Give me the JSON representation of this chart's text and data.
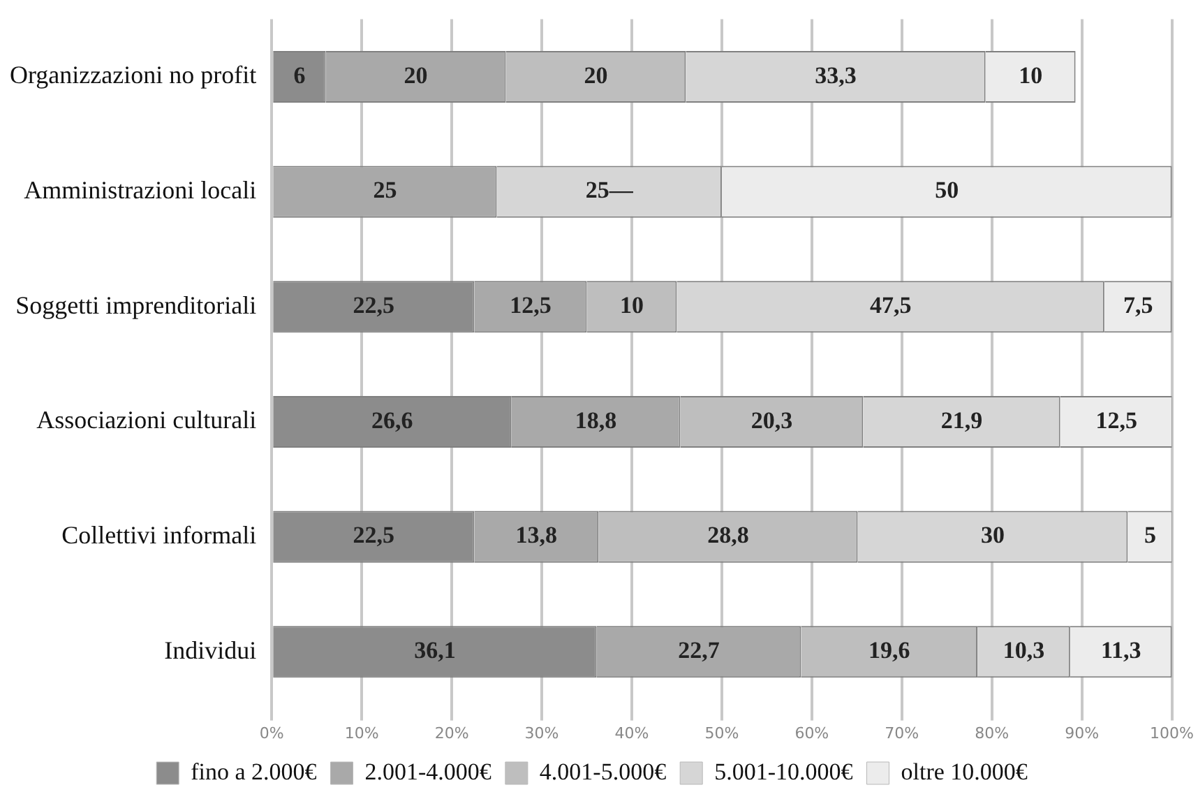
{
  "chart_data": {
    "type": "bar",
    "orientation": "horizontal",
    "stacked": true,
    "legend": "bottom",
    "grid": "x",
    "categories": [
      "Organizzazioni no profit",
      "Amministrazioni locali",
      "Soggetti imprenditoriali",
      "Associazioni culturali",
      "Collettivi informali",
      "Individui"
    ],
    "series": [
      {
        "name": "fino a 2.000€",
        "color": "#8c8c8c",
        "values": [
          6,
          null,
          22.5,
          26.6,
          22.5,
          36.1
        ],
        "value_labels": [
          "6",
          null,
          "22,5",
          "26,6",
          "22,5",
          "36,1"
        ]
      },
      {
        "name": "2.001-4.000€",
        "color": "#a9a9a9",
        "values": [
          20,
          25,
          12.5,
          18.8,
          13.8,
          22.7
        ],
        "value_labels": [
          "20",
          "25",
          "12,5",
          "18,8",
          "13,8",
          "22,7"
        ]
      },
      {
        "name": "4.001-5.000€",
        "color": "#bebebe",
        "values": [
          20,
          null,
          10,
          20.3,
          28.8,
          19.6
        ],
        "value_labels": [
          "20",
          null,
          "10",
          "20,3",
          "28,8",
          "19,6"
        ]
      },
      {
        "name": "5.001-10.000€",
        "color": "#d6d6d6",
        "values": [
          33.3,
          25,
          47.5,
          21.9,
          30,
          10.3
        ],
        "value_labels": [
          "33,3",
          "25—",
          "47,5",
          "21,9",
          "30",
          "10,3"
        ]
      },
      {
        "name": "oltre 10.000€",
        "color": "#ececec",
        "values": [
          10,
          50,
          7.5,
          12.5,
          5,
          11.3
        ],
        "value_labels": [
          "10",
          "50",
          "7,5",
          "12,5",
          "5",
          "11,3"
        ]
      }
    ],
    "xlim": [
      0,
      100
    ],
    "xticks": [
      {
        "value": 0,
        "label": "0%"
      },
      {
        "value": 10,
        "label": "10%"
      },
      {
        "value": 20,
        "label": "20%"
      },
      {
        "value": 30,
        "label": "30%"
      },
      {
        "value": 40,
        "label": "40%"
      },
      {
        "value": 50,
        "label": "50%"
      },
      {
        "value": 60,
        "label": "60%"
      },
      {
        "value": 70,
        "label": "70%"
      },
      {
        "value": 80,
        "label": "80%"
      },
      {
        "value": 90,
        "label": "90%"
      },
      {
        "value": 100,
        "label": "100%"
      }
    ]
  }
}
